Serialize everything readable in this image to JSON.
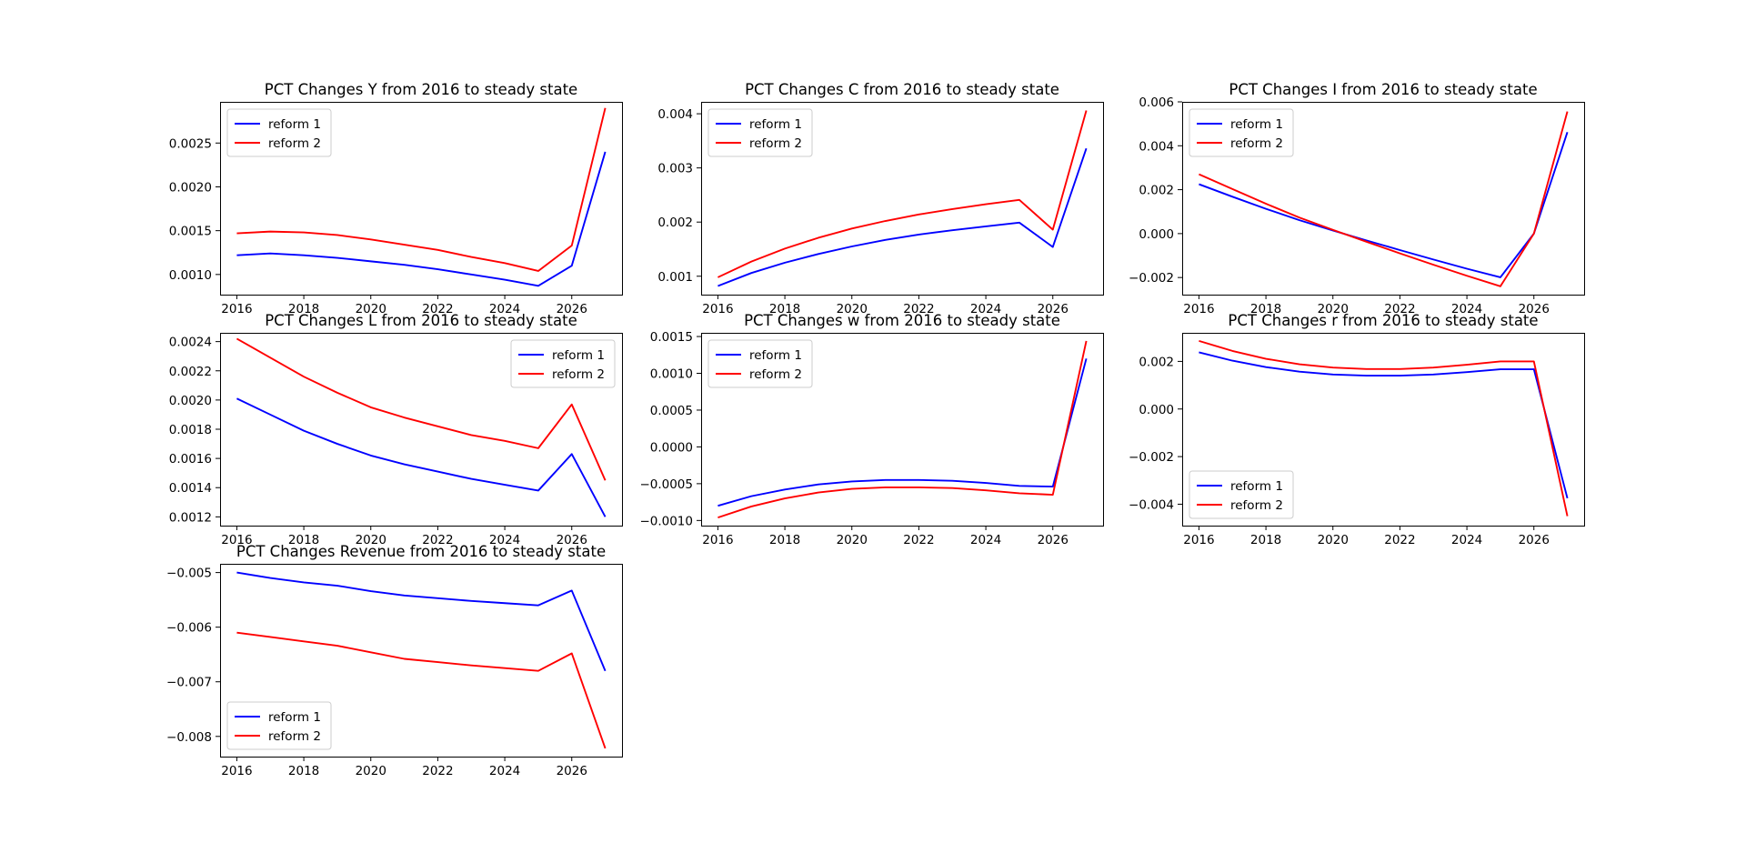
{
  "colors": {
    "series_1": "#0000ff",
    "series_2": "#ff0000",
    "axes": "#000000",
    "background": "#ffffff"
  },
  "chart_data": [
    {
      "type": "line",
      "title": "PCT Changes Y from 2016 to steady state",
      "xlabel": "",
      "ylabel": "",
      "x": [
        2016,
        2017,
        2018,
        2019,
        2020,
        2021,
        2022,
        2023,
        2024,
        2025,
        2026,
        2027
      ],
      "xlim": [
        2015.5,
        2027.5
      ],
      "ylim": [
        0.00077,
        0.00297
      ],
      "xticks": [
        2016,
        2018,
        2020,
        2022,
        2024,
        2026
      ],
      "xtick_labels": [
        "2016",
        "2018",
        "2020",
        "2022",
        "2024",
        "2026"
      ],
      "yticks": [
        0.001,
        0.0015,
        0.002,
        0.0025
      ],
      "ytick_labels": [
        "0.0010",
        "0.0015",
        "0.0020",
        "0.0025"
      ],
      "legend": "upper left",
      "grid": false,
      "series": [
        {
          "name": "reform 1",
          "color": "#0000ff",
          "values": [
            0.00122,
            0.00124,
            0.00122,
            0.00119,
            0.00115,
            0.00111,
            0.00106,
            0.001,
            0.00094,
            0.00087,
            0.0011,
            0.0024
          ]
        },
        {
          "name": "reform 2",
          "color": "#ff0000",
          "values": [
            0.00147,
            0.00149,
            0.00148,
            0.00145,
            0.0014,
            0.00134,
            0.00128,
            0.0012,
            0.00113,
            0.00104,
            0.00133,
            0.0029
          ]
        }
      ]
    },
    {
      "type": "line",
      "title": "PCT Changes C from 2016 to steady state",
      "xlabel": "",
      "ylabel": "",
      "x": [
        2016,
        2017,
        2018,
        2019,
        2020,
        2021,
        2022,
        2023,
        2024,
        2025,
        2026,
        2027
      ],
      "xlim": [
        2015.5,
        2027.5
      ],
      "ylim": [
        0.00066,
        0.00422
      ],
      "xticks": [
        2016,
        2018,
        2020,
        2022,
        2024,
        2026
      ],
      "xtick_labels": [
        "2016",
        "2018",
        "2020",
        "2022",
        "2024",
        "2026"
      ],
      "yticks": [
        0.001,
        0.002,
        0.003,
        0.004
      ],
      "ytick_labels": [
        "0.001",
        "0.002",
        "0.003",
        "0.004"
      ],
      "legend": "upper left",
      "grid": false,
      "series": [
        {
          "name": "reform 1",
          "color": "#0000ff",
          "values": [
            0.00082,
            0.00106,
            0.00125,
            0.00141,
            0.00155,
            0.00167,
            0.00177,
            0.00185,
            0.00192,
            0.00199,
            0.00154,
            0.00336
          ]
        },
        {
          "name": "reform 2",
          "color": "#ff0000",
          "values": [
            0.00098,
            0.00127,
            0.00151,
            0.00171,
            0.00188,
            0.00202,
            0.00214,
            0.00224,
            0.00233,
            0.00241,
            0.00186,
            0.00406
          ]
        }
      ]
    },
    {
      "type": "line",
      "title": "PCT Changes I from 2016 to steady state",
      "xlabel": "",
      "ylabel": "",
      "x": [
        2016,
        2017,
        2018,
        2019,
        2020,
        2021,
        2022,
        2023,
        2024,
        2025,
        2026,
        2027
      ],
      "xlim": [
        2015.5,
        2027.5
      ],
      "ylim": [
        -0.00278,
        0.006
      ],
      "xticks": [
        2016,
        2018,
        2020,
        2022,
        2024,
        2026
      ],
      "xtick_labels": [
        "2016",
        "2018",
        "2020",
        "2022",
        "2024",
        "2026"
      ],
      "yticks": [
        -0.002,
        0.0,
        0.002,
        0.004,
        0.006
      ],
      "ytick_labels": [
        "−0.002",
        "0.000",
        "0.002",
        "0.004",
        "0.006"
      ],
      "legend": "upper left",
      "grid": false,
      "series": [
        {
          "name": "reform 1",
          "color": "#0000ff",
          "values": [
            0.00225,
            0.00168,
            0.00113,
            0.00061,
            0.00014,
            -0.00031,
            -0.00075,
            -0.00118,
            -0.0016,
            -0.00199,
            0.0,
            0.00462
          ]
        },
        {
          "name": "reform 2",
          "color": "#ff0000",
          "values": [
            0.0027,
            0.00203,
            0.00136,
            0.00073,
            0.00017,
            -0.00037,
            -0.0009,
            -0.00142,
            -0.00192,
            -0.0024,
            0.0,
            0.00556
          ]
        }
      ]
    },
    {
      "type": "line",
      "title": "PCT Changes L from 2016 to steady state",
      "xlabel": "",
      "ylabel": "",
      "x": [
        2016,
        2017,
        2018,
        2019,
        2020,
        2021,
        2022,
        2023,
        2024,
        2025,
        2026,
        2027
      ],
      "xlim": [
        2015.5,
        2027.5
      ],
      "ylim": [
        0.00114,
        0.00246
      ],
      "xticks": [
        2016,
        2018,
        2020,
        2022,
        2024,
        2026
      ],
      "xtick_labels": [
        "2016",
        "2018",
        "2020",
        "2022",
        "2024",
        "2026"
      ],
      "yticks": [
        0.0012,
        0.0014,
        0.0016,
        0.0018,
        0.002,
        0.0022,
        0.0024
      ],
      "ytick_labels": [
        "0.0012",
        "0.0014",
        "0.0016",
        "0.0018",
        "0.0020",
        "0.0022",
        "0.0024"
      ],
      "legend": "upper right",
      "grid": false,
      "series": [
        {
          "name": "reform 1",
          "color": "#0000ff",
          "values": [
            0.00201,
            0.0019,
            0.00179,
            0.0017,
            0.00162,
            0.00156,
            0.00151,
            0.00146,
            0.00142,
            0.00138,
            0.00163,
            0.0012
          ]
        },
        {
          "name": "reform 2",
          "color": "#ff0000",
          "values": [
            0.00242,
            0.00229,
            0.00216,
            0.00205,
            0.00195,
            0.00188,
            0.00182,
            0.00176,
            0.00172,
            0.00167,
            0.00197,
            0.00145
          ]
        }
      ]
    },
    {
      "type": "line",
      "title": "PCT Changes w from 2016 to steady state",
      "xlabel": "",
      "ylabel": "",
      "x": [
        2016,
        2017,
        2018,
        2019,
        2020,
        2021,
        2022,
        2023,
        2024,
        2025,
        2026,
        2027
      ],
      "xlim": [
        2015.5,
        2027.5
      ],
      "ylim": [
        -0.00107,
        0.00155
      ],
      "xticks": [
        2016,
        2018,
        2020,
        2022,
        2024,
        2026
      ],
      "xtick_labels": [
        "2016",
        "2018",
        "2020",
        "2022",
        "2024",
        "2026"
      ],
      "yticks": [
        -0.001,
        -0.0005,
        0.0,
        0.0005,
        0.001,
        0.0015
      ],
      "ytick_labels": [
        "−0.0010",
        "−0.0005",
        "0.0000",
        "0.0005",
        "0.0010",
        "0.0015"
      ],
      "legend": "upper left",
      "grid": false,
      "series": [
        {
          "name": "reform 1",
          "color": "#0000ff",
          "values": [
            -0.0008,
            -0.00067,
            -0.00058,
            -0.00051,
            -0.00047,
            -0.00045,
            -0.00045,
            -0.00046,
            -0.00049,
            -0.00053,
            -0.00054,
            0.0012
          ]
        },
        {
          "name": "reform 2",
          "color": "#ff0000",
          "values": [
            -0.00096,
            -0.00081,
            -0.0007,
            -0.00062,
            -0.00057,
            -0.00055,
            -0.00055,
            -0.00056,
            -0.00059,
            -0.00063,
            -0.00065,
            0.00144
          ]
        }
      ]
    },
    {
      "type": "line",
      "title": "PCT Changes r from 2016 to steady state",
      "xlabel": "",
      "ylabel": "",
      "x": [
        2016,
        2017,
        2018,
        2019,
        2020,
        2021,
        2022,
        2023,
        2024,
        2025,
        2026,
        2027
      ],
      "xlim": [
        2015.5,
        2027.5
      ],
      "ylim": [
        -0.0049,
        0.0032
      ],
      "xticks": [
        2016,
        2018,
        2020,
        2022,
        2024,
        2026
      ],
      "xtick_labels": [
        "2016",
        "2018",
        "2020",
        "2022",
        "2024",
        "2026"
      ],
      "yticks": [
        -0.004,
        -0.002,
        0.0,
        0.002
      ],
      "ytick_labels": [
        "−0.004",
        "−0.002",
        "0.000",
        "0.002"
      ],
      "legend": "lower left",
      "grid": false,
      "series": [
        {
          "name": "reform 1",
          "color": "#0000ff",
          "values": [
            0.00238,
            0.00203,
            0.00176,
            0.00157,
            0.00145,
            0.0014,
            0.0014,
            0.00145,
            0.00155,
            0.00167,
            0.00167,
            -0.00375
          ]
        },
        {
          "name": "reform 2",
          "color": "#ff0000",
          "values": [
            0.00286,
            0.00244,
            0.00211,
            0.00188,
            0.00174,
            0.00168,
            0.00168,
            0.00174,
            0.00186,
            0.002,
            0.002,
            -0.0045
          ]
        }
      ]
    },
    {
      "type": "line",
      "title": "PCT Changes Revenue from 2016 to steady state",
      "xlabel": "",
      "ylabel": "",
      "x": [
        2016,
        2017,
        2018,
        2019,
        2020,
        2021,
        2022,
        2023,
        2024,
        2025,
        2026,
        2027
      ],
      "xlim": [
        2015.5,
        2027.5
      ],
      "ylim": [
        -0.00837,
        -0.00484
      ],
      "xticks": [
        2016,
        2018,
        2020,
        2022,
        2024,
        2026
      ],
      "xtick_labels": [
        "2016",
        "2018",
        "2020",
        "2022",
        "2024",
        "2026"
      ],
      "yticks": [
        -0.008,
        -0.007,
        -0.006,
        -0.005
      ],
      "ytick_labels": [
        "−0.008",
        "−0.007",
        "−0.006",
        "−0.005"
      ],
      "legend": "lower left",
      "grid": false,
      "series": [
        {
          "name": "reform 1",
          "color": "#0000ff",
          "values": [
            -0.005,
            -0.0051,
            -0.00518,
            -0.00524,
            -0.00534,
            -0.00542,
            -0.00547,
            -0.00552,
            -0.00556,
            -0.0056,
            -0.00533,
            -0.0068
          ]
        },
        {
          "name": "reform 2",
          "color": "#ff0000",
          "values": [
            -0.0061,
            -0.00618,
            -0.00626,
            -0.00634,
            -0.00646,
            -0.00658,
            -0.00664,
            -0.0067,
            -0.00675,
            -0.0068,
            -0.00648,
            -0.00822
          ]
        }
      ]
    }
  ]
}
